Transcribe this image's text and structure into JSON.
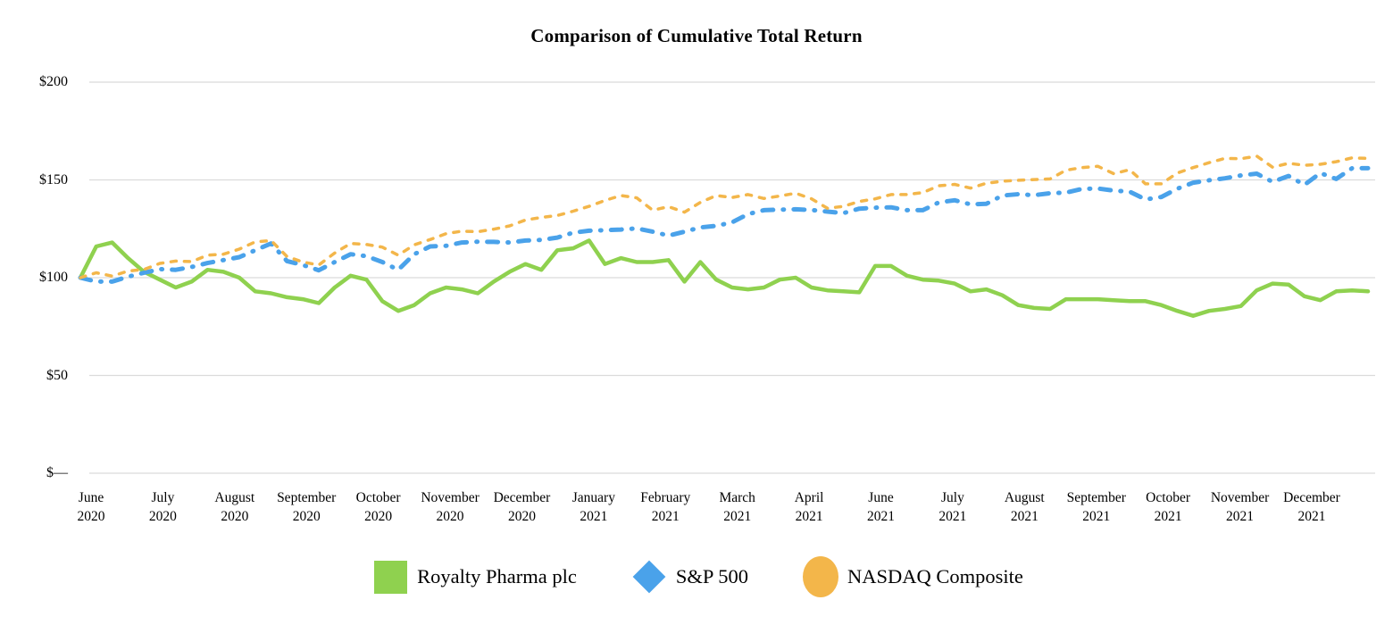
{
  "chart_data": {
    "type": "line",
    "title": "Comparison of Cumulative Total Return",
    "xlabel": "",
    "ylabel": "",
    "ylim": [
      0,
      210
    ],
    "grid": "horizontal",
    "grid_color": "#dbdbdb",
    "legend_position": "bottom",
    "y_ticks": [
      {
        "label": "$200",
        "value": 200
      },
      {
        "label": "$150",
        "value": 150
      },
      {
        "label": "$100",
        "value": 100
      },
      {
        "label": "$50",
        "value": 50
      },
      {
        "label": "$—",
        "value": 0
      }
    ],
    "x_labels": [
      {
        "month": "June",
        "year": "2020"
      },
      {
        "month": "July",
        "year": "2020"
      },
      {
        "month": "August",
        "year": "2020"
      },
      {
        "month": "September",
        "year": "2020"
      },
      {
        "month": "October",
        "year": "2020"
      },
      {
        "month": "November",
        "year": "2020"
      },
      {
        "month": "December",
        "year": "2020"
      },
      {
        "month": "January",
        "year": "2021"
      },
      {
        "month": "February",
        "year": "2021"
      },
      {
        "month": "March",
        "year": "2021"
      },
      {
        "month": "April",
        "year": "2021"
      },
      {
        "month": "June",
        "year": "2021"
      },
      {
        "month": "July",
        "year": "2021"
      },
      {
        "month": "August",
        "year": "2021"
      },
      {
        "month": "September",
        "year": "2021"
      },
      {
        "month": "October",
        "year": "2021"
      },
      {
        "month": "November",
        "year": "2021"
      },
      {
        "month": "December",
        "year": "2021"
      }
    ],
    "x_unit": "weekly points, June 2020 through December 2021",
    "base_value": 100,
    "series": [
      {
        "name": "Royalty Pharma plc",
        "color": "#8fd14f",
        "style": "solid",
        "marker": "square",
        "values": [
          100,
          116,
          118,
          110,
          103,
          99,
          95,
          98,
          104,
          103,
          100,
          93,
          92,
          90,
          89,
          87,
          95,
          101,
          99,
          88,
          83,
          86,
          92,
          95,
          94,
          92,
          98,
          103,
          107,
          104,
          114,
          115,
          119,
          107,
          110,
          108,
          108,
          109,
          98,
          108,
          99,
          95,
          94,
          95,
          99,
          100,
          95,
          93.5,
          93,
          92.5,
          106,
          106,
          101,
          99,
          98.5,
          97,
          93,
          94,
          91,
          86,
          84.5,
          84,
          89,
          89,
          89,
          88.5,
          88,
          88,
          86,
          83,
          80.5,
          83,
          84,
          85.5,
          93.5,
          97,
          96.5,
          90.5,
          88.5,
          93,
          93.5,
          93
        ]
      },
      {
        "name": "S&P 500",
        "color": "#4aa2ea",
        "style": "dash-dot",
        "marker": "diamond",
        "values": [
          100,
          98,
          98,
          100.5,
          102.5,
          104.4,
          104,
          105.5,
          107.5,
          109,
          110.5,
          114,
          117.5,
          108.5,
          106.5,
          103.8,
          108,
          112,
          111,
          108,
          104,
          112,
          116,
          116.3,
          118,
          118.4,
          118.3,
          118,
          119,
          119.3,
          120.5,
          123,
          124,
          124.3,
          124.6,
          125.2,
          123.5,
          121.5,
          123.5,
          125.7,
          126.5,
          128.3,
          132.5,
          134.5,
          134.8,
          135,
          134.6,
          133.8,
          133,
          135.3,
          135.8,
          136,
          134.5,
          134.5,
          138.5,
          139.6,
          137.5,
          137.8,
          142,
          142.7,
          142.2,
          143.2,
          143.5,
          145.4,
          145.6,
          144.5,
          144,
          140,
          141.3,
          145.5,
          148.6,
          149.8,
          150.8,
          152.3,
          153.2,
          149,
          152,
          147.5,
          153.5,
          150.5,
          156,
          156
        ]
      },
      {
        "name": "NASDAQ Composite",
        "color": "#f3b64a",
        "style": "dashed",
        "marker": "circle",
        "values": [
          100,
          102.5,
          100.8,
          103.4,
          104.2,
          107.3,
          108.5,
          108.2,
          111.5,
          112,
          114.6,
          118.3,
          119,
          110.8,
          108,
          106.5,
          112.6,
          117.5,
          117,
          115.6,
          111.5,
          116.8,
          119.5,
          122.5,
          123.8,
          123.5,
          124.8,
          126.5,
          129.5,
          130.8,
          131.8,
          134,
          136.5,
          139.5,
          142,
          140.8,
          134.5,
          136.3,
          133.5,
          138.5,
          142,
          141,
          142.5,
          140.5,
          141.8,
          143.2,
          140.3,
          135.5,
          136.5,
          139,
          140.3,
          142.5,
          142.5,
          143.5,
          147,
          147.7,
          145.8,
          148.3,
          149.3,
          149.8,
          150.2,
          150.5,
          155,
          156.3,
          157,
          153.2,
          155.2,
          148,
          148,
          153.5,
          156.3,
          158.8,
          161,
          160.8,
          162.2,
          156.5,
          158.5,
          157.5,
          158,
          159.3,
          161.3,
          161
        ]
      }
    ]
  }
}
